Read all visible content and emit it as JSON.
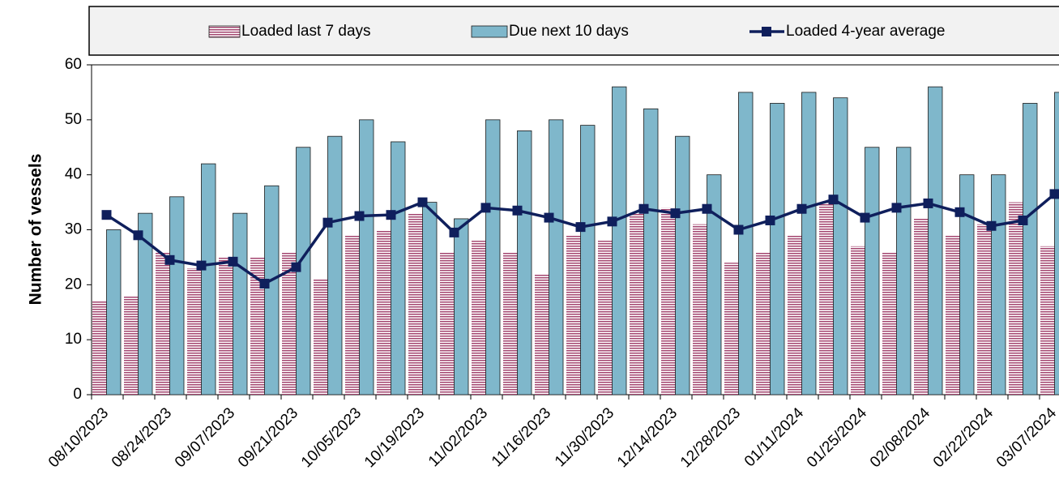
{
  "chart_data": {
    "type": "bar-line",
    "y_label": "Number of vessels",
    "categories": [
      "08/10/2023",
      null,
      "08/24/2023",
      null,
      "09/07/2023",
      null,
      "09/21/2023",
      null,
      "10/05/2023",
      null,
      "10/19/2023",
      null,
      "11/02/2023",
      null,
      "11/16/2023",
      null,
      "11/30/2023",
      null,
      "12/14/2023",
      null,
      "12/28/2023",
      null,
      "01/11/2024",
      null,
      "01/25/2024",
      null,
      "02/08/2024",
      null,
      "02/22/2024",
      null,
      "03/07/2024"
    ],
    "series": [
      {
        "name": "Loaded last 7 days",
        "kind": "bar",
        "color": "#a3456f",
        "values": [
          17,
          18,
          26,
          23,
          25,
          25,
          26,
          21,
          29,
          30,
          33,
          26,
          28,
          26,
          22,
          29,
          28,
          33,
          34,
          31,
          24,
          26,
          29,
          35,
          27,
          26,
          32,
          29,
          31,
          35,
          27
        ]
      },
      {
        "name": "Due next 10 days",
        "kind": "bar",
        "color": "#7fb7cb",
        "values": [
          30,
          33,
          36,
          42,
          33,
          38,
          45,
          47,
          50,
          46,
          35,
          32,
          50,
          48,
          50,
          49,
          56,
          52,
          47,
          40,
          55,
          53,
          55,
          54,
          45,
          45,
          56,
          40,
          40,
          53,
          55
        ]
      },
      {
        "name": "Loaded 4-year average",
        "kind": "line",
        "color": "#0f1f5c",
        "values": [
          32.7,
          29,
          24.5,
          23.5,
          24.2,
          20.2,
          23.2,
          31.3,
          32.5,
          32.7,
          35,
          29.5,
          34,
          33.5,
          32.2,
          30.5,
          31.5,
          33.8,
          33,
          33.8,
          30,
          31.7,
          33.8,
          35.5,
          32.2,
          34,
          34.8,
          33.2,
          30.7,
          31.7,
          36.5
        ]
      }
    ],
    "ylim": [
      0,
      60
    ],
    "yticks": [
      0,
      10,
      20,
      30,
      40,
      50,
      60
    ],
    "legend": "top"
  }
}
